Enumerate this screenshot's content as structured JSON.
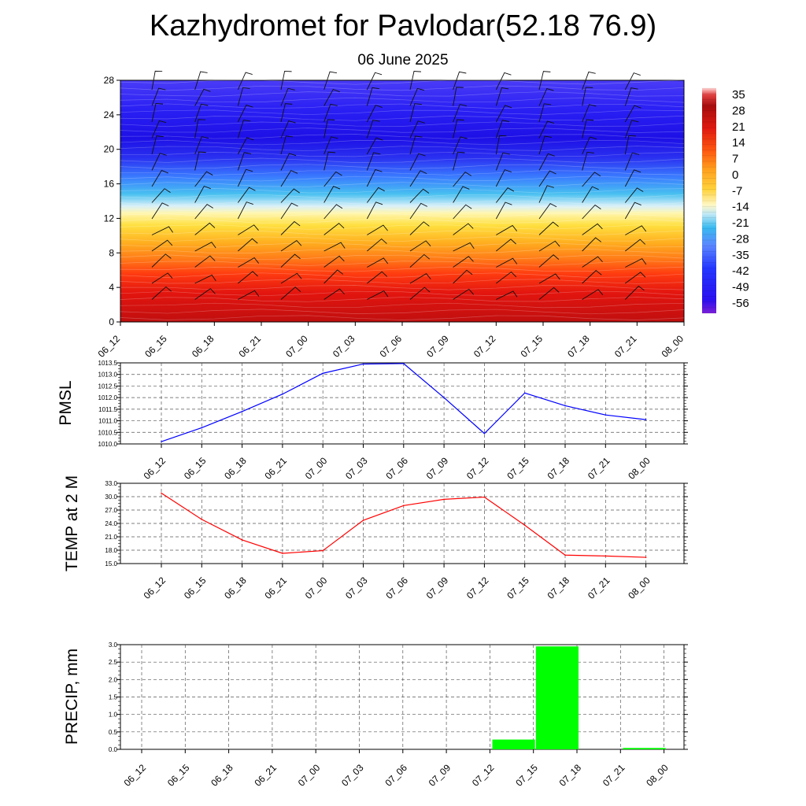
{
  "header": {
    "title": "Kazhydromet for Pavlodar(52.18 76.9)",
    "subtitle": "06 June 2025"
  },
  "chart_data": [
    {
      "type": "heatmap",
      "x_ticks": [
        "06_12",
        "06_15",
        "06_18",
        "06_21",
        "07_00",
        "07_03",
        "07_06",
        "07_09",
        "07_12",
        "07_15",
        "07_18",
        "07_21",
        "08_00"
      ],
      "y_ticks": [
        0,
        4,
        8,
        12,
        16,
        20,
        24,
        28
      ],
      "ylim": [
        0,
        28
      ],
      "colorbar_labels": [
        "35",
        "28",
        "21",
        "14",
        "7",
        "0",
        "-7",
        "-14",
        "-21",
        "-28",
        "-35",
        "-42",
        "-49",
        "-56"
      ],
      "colorbar_range": [
        -63,
        39
      ],
      "colors": [
        "#7a1fd6",
        "#2a10f0",
        "#2438ff",
        "#5b86ff",
        "#39b9ef",
        "#bfe8f6",
        "#fff3a0",
        "#ffd23c",
        "#ff9f1c",
        "#ff5a10",
        "#e01a10",
        "#a80d0d",
        "#ffffff"
      ],
      "wind_barbs": true
    },
    {
      "type": "line",
      "ylabel": "PMSL",
      "categories": [
        "06_12",
        "06_15",
        "06_18",
        "06_21",
        "07_00",
        "07_03",
        "07_06",
        "07_09",
        "07_12",
        "07_15",
        "07_18",
        "07_21",
        "08_00"
      ],
      "y_ticks": [
        "1010.0",
        "1010.5",
        "1011.0",
        "1011.5",
        "1012.0",
        "1012.5",
        "1013.0",
        "1013.5"
      ],
      "ylim": [
        1010.0,
        1013.5
      ],
      "series": [
        {
          "values": [
            1010.1,
            1010.7,
            1011.4,
            1012.15,
            1013.05,
            1013.45,
            1013.47,
            1012.0,
            1010.45,
            1012.2,
            1011.65,
            1011.25,
            1011.05
          ],
          "color": "#0000ff"
        }
      ],
      "grid": true
    },
    {
      "type": "line",
      "ylabel": "TEMP at 2 M",
      "categories": [
        "06_12",
        "06_15",
        "06_18",
        "06_21",
        "07_00",
        "07_03",
        "07_06",
        "07_09",
        "07_12",
        "07_15",
        "07_18",
        "07_21",
        "08_00"
      ],
      "y_ticks": [
        "15.0",
        "18.0",
        "21.0",
        "24.0",
        "27.0",
        "30.0",
        "33.0"
      ],
      "ylim": [
        15.0,
        33.0
      ],
      "series": [
        {
          "values": [
            30.8,
            24.9,
            20.3,
            17.3,
            17.9,
            24.7,
            28.0,
            29.4,
            29.9,
            23.6,
            16.9,
            16.7,
            16.4
          ],
          "color": "#ff0000"
        }
      ],
      "grid": true
    },
    {
      "type": "bar",
      "ylabel": "PRECIP, mm",
      "categories": [
        "06_12",
        "06_15",
        "06_18",
        "06_21",
        "07_00",
        "07_03",
        "07_06",
        "07_09",
        "07_12",
        "07_15",
        "07_18",
        "07_21",
        "08_00"
      ],
      "y_ticks": [
        "0.0",
        "0.5",
        "1.0",
        "1.5",
        "2.0",
        "2.5",
        "3.0"
      ],
      "ylim": [
        0.0,
        3.0
      ],
      "values": [
        0,
        0,
        0,
        0,
        0,
        0,
        0,
        0,
        0,
        0.28,
        2.95,
        0,
        0.04
      ],
      "bar_color": "#00ff00",
      "grid": true
    }
  ]
}
